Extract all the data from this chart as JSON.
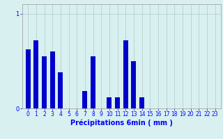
{
  "title": "",
  "xlabel": "Précipitations 6min ( mm )",
  "ylabel": "",
  "background_color": "#d8f0f0",
  "bar_color": "#0000cc",
  "grid_color": "#b0c8c8",
  "categories": [
    0,
    1,
    2,
    3,
    4,
    5,
    6,
    7,
    8,
    9,
    10,
    11,
    12,
    13,
    14,
    15,
    16,
    17,
    18,
    19,
    20,
    21,
    22,
    23
  ],
  "values": [
    0.62,
    0.72,
    0.55,
    0.6,
    0.38,
    0.0,
    0.0,
    0.18,
    0.55,
    0.0,
    0.12,
    0.12,
    0.72,
    0.5,
    0.12,
    0.0,
    0.0,
    0.0,
    0.0,
    0.0,
    0.0,
    0.0,
    0.0,
    0.0
  ],
  "ylim": [
    0,
    1.1
  ],
  "yticks": [
    0,
    1
  ],
  "bar_width": 0.6,
  "xlabel_fontsize": 7,
  "tick_fontsize": 5.5
}
